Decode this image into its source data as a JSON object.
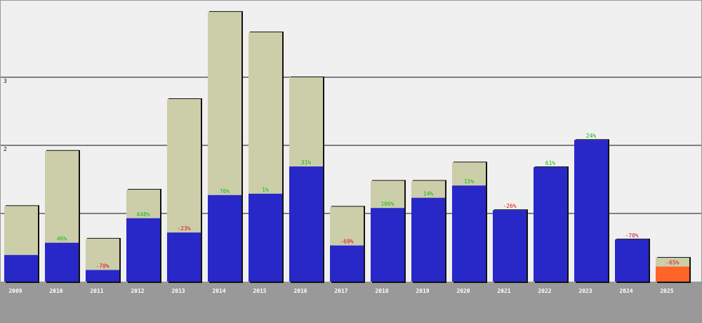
{
  "colors": {
    "background": "#f0f0f0",
    "axis_band": "#999999",
    "gridline": "#111111",
    "total_bar": "#ccceaa",
    "value_bar": "#2828c8",
    "current_bar": "#ff6428",
    "shadow": "#111111",
    "positive": "#11bb11",
    "negative": "#dd1111"
  },
  "chart_data": {
    "type": "bar",
    "title": "",
    "xlabel": "",
    "ylabel": "",
    "ylim": [
      0,
      4
    ],
    "grid": true,
    "y_ticks": [
      "",
      "",
      "2",
      "3"
    ],
    "categories": [
      "2009",
      "2010",
      "2011",
      "2012",
      "2013",
      "2014",
      "2015",
      "2016",
      "2017",
      "2018",
      "2019",
      "2020",
      "2021",
      "2022",
      "2023",
      "2024",
      "2025"
    ],
    "series": [
      {
        "values": [
          1.11,
          1.92,
          0.63,
          1.35,
          2.68,
          3.96,
          3.66,
          3.0,
          1.1,
          1.48,
          1.48,
          1.75,
          1.05,
          1.68,
          2.08,
          0.62,
          0.35
        ],
        "color": "#ccceaa"
      },
      {
        "values": [
          0.39,
          0.57,
          0.17,
          0.93,
          0.72,
          1.27,
          1.29,
          1.69,
          0.53,
          1.08,
          1.23,
          1.41,
          1.05,
          1.68,
          2.08,
          0.62,
          0.22
        ],
        "color": "#2828c8"
      }
    ],
    "annotations": [
      "",
      "46%",
      "-70%",
      "448%",
      "-23%",
      "76%",
      "1%",
      "31%",
      "-69%",
      "106%",
      "14%",
      "15%",
      "-26%",
      "61%",
      "24%",
      "-70%",
      "-65%"
    ],
    "highlight_last": true
  }
}
